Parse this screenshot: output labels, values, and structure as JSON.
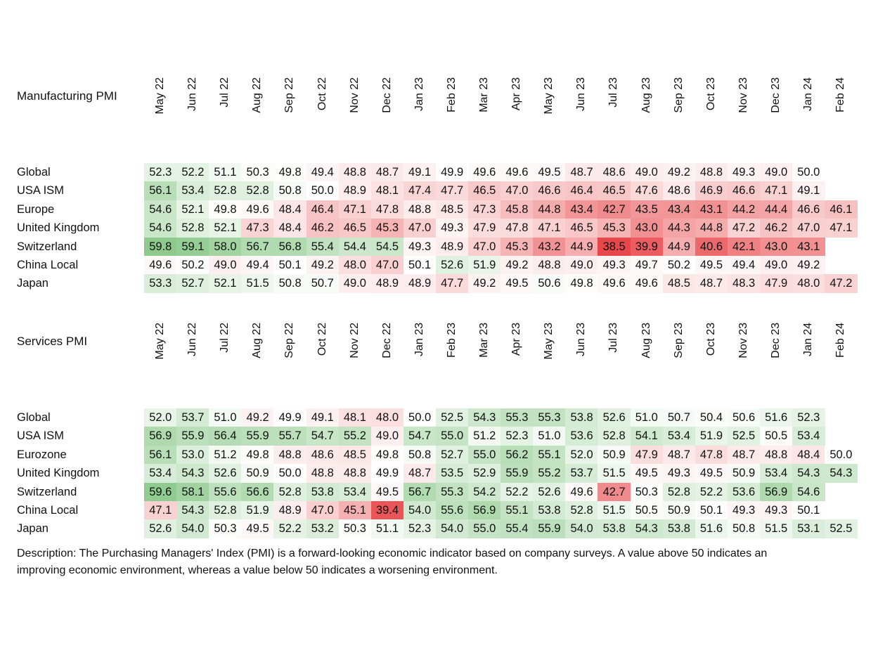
{
  "chart_data": [
    {
      "type": "heatmap",
      "title": "Manufacturing PMI",
      "columns": [
        "May 22",
        "Jun 22",
        "Jul 22",
        "Aug 22",
        "Sep 22",
        "Oct 22",
        "Nov 22",
        "Dec 22",
        "Jan 23",
        "Feb 23",
        "Mar 23",
        "Apr 23",
        "May 23",
        "Jun 23",
        "Jul 23",
        "Aug 23",
        "Sep 23",
        "Oct 23",
        "Nov 23",
        "Dec 23",
        "Jan 24",
        "Feb 24"
      ],
      "rows": [
        {
          "name": "Global",
          "values": [
            "52.3",
            "52.2",
            "51.1",
            "50.3",
            "49.8",
            "49.4",
            "48.8",
            "48.7",
            "49.1",
            "49.9",
            "49.6",
            "49.6",
            "49.5",
            "48.7",
            "48.6",
            "49.0",
            "49.2",
            "48.8",
            "49.3",
            "49.0",
            "50.0",
            ""
          ]
        },
        {
          "name": "USA ISM",
          "values": [
            "56.1",
            "53.4",
            "52.8",
            "52.8",
            "50.8",
            "50.0",
            "48.9",
            "48.1",
            "47.4",
            "47.7",
            "46.5",
            "47.0",
            "46.6",
            "46.4",
            "46.5",
            "47.6",
            "48.6",
            "46.9",
            "46.6",
            "47.1",
            "49.1",
            ""
          ]
        },
        {
          "name": "Europe",
          "values": [
            "54.6",
            "52.1",
            "49.8",
            "49.6",
            "48.4",
            "46.4",
            "47.1",
            "47.8",
            "48.8",
            "48.5",
            "47.3",
            "45.8",
            "44.8",
            "43.4",
            "42.7",
            "43.5",
            "43.4",
            "43.1",
            "44.2",
            "44.4",
            "46.6",
            "46.1"
          ]
        },
        {
          "name": "United Kingdom",
          "values": [
            "54.6",
            "52.8",
            "52.1",
            "47.3",
            "48.4",
            "46.2",
            "46.5",
            "45.3",
            "47.0",
            "49.3",
            "47.9",
            "47.8",
            "47.1",
            "46.5",
            "45.3",
            "43.0",
            "44.3",
            "44.8",
            "47.2",
            "46.2",
            "47.0",
            "47.1"
          ]
        },
        {
          "name": "Switzerland",
          "values": [
            "59.8",
            "59.1",
            "58.0",
            "56.7",
            "56.8",
            "55.4",
            "54.4",
            "54.5",
            "49.3",
            "48.9",
            "47.0",
            "45.3",
            "43.2",
            "44.9",
            "38.5",
            "39.9",
            "44.9",
            "40.6",
            "42.1",
            "43.0",
            "43.1",
            ""
          ]
        },
        {
          "name": "China Local",
          "values": [
            "49.6",
            "50.2",
            "49.0",
            "49.4",
            "50.1",
            "49.2",
            "48.0",
            "47.0",
            "50.1",
            "52.6",
            "51.9",
            "49.2",
            "48.8",
            "49.0",
            "49.3",
            "49.7",
            "50.2",
            "49.5",
            "49.4",
            "49.0",
            "49.2",
            ""
          ]
        },
        {
          "name": "Japan",
          "values": [
            "53.3",
            "52.7",
            "52.1",
            "51.5",
            "50.8",
            "50.7",
            "49.0",
            "48.9",
            "48.9",
            "47.7",
            "49.2",
            "49.5",
            "50.6",
            "49.8",
            "49.6",
            "49.6",
            "48.5",
            "48.7",
            "48.3",
            "47.9",
            "48.0",
            "47.2"
          ]
        }
      ],
      "color_scale": {
        "low": "#e8474a",
        "mid": "#ffffff",
        "high": "#8bc98a",
        "midpoint": 50
      }
    },
    {
      "type": "heatmap",
      "title": "Services PMI",
      "columns": [
        "May 22",
        "Jun 22",
        "Jul 22",
        "Aug 22",
        "Sep 22",
        "Oct 22",
        "Nov 22",
        "Dec 22",
        "Jan 23",
        "Feb 23",
        "Mar 23",
        "Apr 23",
        "May 23",
        "Jun 23",
        "Jul 23",
        "Aug 23",
        "Sep 23",
        "Oct 23",
        "Nov 23",
        "Dec 23",
        "Jan 24",
        "Feb 24"
      ],
      "rows": [
        {
          "name": "Global",
          "values": [
            "52.0",
            "53.7",
            "51.0",
            "49.2",
            "49.9",
            "49.1",
            "48.1",
            "48.0",
            "50.0",
            "52.5",
            "54.3",
            "55.3",
            "55.3",
            "53.8",
            "52.6",
            "51.0",
            "50.7",
            "50.4",
            "50.6",
            "51.6",
            "52.3",
            ""
          ]
        },
        {
          "name": "USA ISM",
          "values": [
            "56.9",
            "55.9",
            "56.4",
            "55.9",
            "55.7",
            "54.7",
            "55.2",
            "49.0",
            "54.7",
            "55.0",
            "51.2",
            "52.3",
            "51.0",
            "53.6",
            "52.8",
            "54.1",
            "53.4",
            "51.9",
            "52.5",
            "50.5",
            "53.4",
            ""
          ]
        },
        {
          "name": "Eurozone",
          "values": [
            "56.1",
            "53.0",
            "51.2",
            "49.8",
            "48.8",
            "48.6",
            "48.5",
            "49.8",
            "50.8",
            "52.7",
            "55.0",
            "56.2",
            "55.1",
            "52.0",
            "50.9",
            "47.9",
            "48.7",
            "47.8",
            "48.7",
            "48.8",
            "48.4",
            "50.0"
          ]
        },
        {
          "name": "United Kingdom",
          "values": [
            "53.4",
            "54.3",
            "52.6",
            "50.9",
            "50.0",
            "48.8",
            "48.8",
            "49.9",
            "48.7",
            "53.5",
            "52.9",
            "55.9",
            "55.2",
            "53.7",
            "51.5",
            "49.5",
            "49.3",
            "49.5",
            "50.9",
            "53.4",
            "54.3",
            "54.3"
          ]
        },
        {
          "name": "Switzerland",
          "values": [
            "59.6",
            "58.1",
            "55.6",
            "56.6",
            "52.8",
            "53.8",
            "53.4",
            "49.5",
            "56.7",
            "55.3",
            "54.2",
            "52.2",
            "52.6",
            "49.6",
            "42.7",
            "50.3",
            "52.8",
            "52.2",
            "53.6",
            "56.9",
            "54.6",
            ""
          ]
        },
        {
          "name": "China Local",
          "values": [
            "47.1",
            "54.3",
            "52.8",
            "51.9",
            "48.9",
            "47.0",
            "45.1",
            "39.4",
            "54.0",
            "55.6",
            "56.9",
            "55.1",
            "53.8",
            "52.8",
            "51.5",
            "50.5",
            "50.9",
            "50.1",
            "49.3",
            "49.3",
            "50.1",
            ""
          ]
        },
        {
          "name": "Japan",
          "values": [
            "52.6",
            "54.0",
            "50.3",
            "49.5",
            "52.2",
            "53.2",
            "50.3",
            "51.1",
            "52.3",
            "54.0",
            "55.0",
            "55.4",
            "55.9",
            "54.0",
            "53.8",
            "54.3",
            "53.8",
            "51.6",
            "50.8",
            "51.5",
            "53.1",
            "52.5"
          ]
        }
      ],
      "color_scale": {
        "low": "#e8474a",
        "mid": "#ffffff",
        "high": "#8bc98a",
        "midpoint": 50
      }
    }
  ],
  "description": "Description: The Purchasing Managers' Index (PMI) is a forward-looking economic indicator based on company surveys. A value above 50 indicates an improving economic environment, whereas a value below 50 indicates a worsening environment."
}
